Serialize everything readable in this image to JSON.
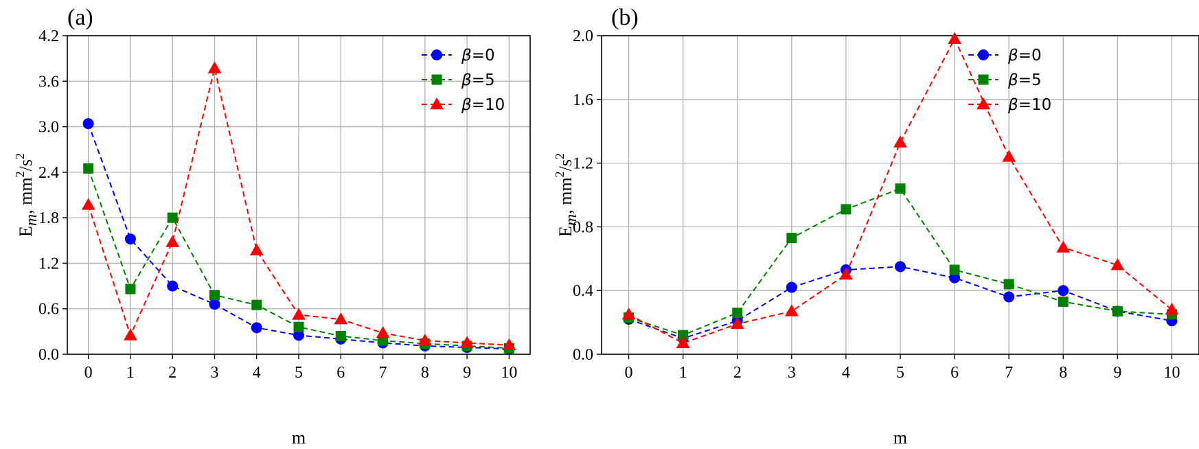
{
  "chart_data": [
    {
      "type": "line",
      "panel_label": "(a)",
      "xlabel": "m",
      "ylabel": "E",
      "ylabel_sub": "m",
      "ylabel_unit": ", mm",
      "ylabel_sup1": "2",
      "ylabel_slash": "/s",
      "ylabel_sup2": "2",
      "x": [
        0,
        1,
        2,
        3,
        4,
        5,
        6,
        7,
        8,
        9,
        10
      ],
      "x_tick_labels": [
        "0",
        "1",
        "2",
        "3",
        "4",
        "5",
        "6",
        "7",
        "8",
        "9",
        "10"
      ],
      "ylim": [
        0,
        4.2
      ],
      "y_ticks": [
        0.0,
        0.6,
        1.2,
        1.8,
        2.4,
        3.0,
        3.6,
        4.2
      ],
      "y_tick_labels": [
        "0.0",
        "0.6",
        "1.2",
        "1.8",
        "2.4",
        "3.0",
        "3.6",
        "4.2"
      ],
      "grid": true,
      "legend_position": "top-right",
      "series": [
        {
          "name": "β=0",
          "greek": "β",
          "suffix": "=0",
          "color": "#0000ff",
          "marker": "circle",
          "values": [
            3.04,
            1.52,
            0.9,
            0.66,
            0.35,
            0.25,
            0.2,
            0.15,
            0.11,
            0.09,
            0.07
          ]
        },
        {
          "name": "β=5",
          "greek": "β",
          "suffix": "=5",
          "color": "#008000",
          "marker": "square",
          "values": [
            2.45,
            0.86,
            1.8,
            0.78,
            0.65,
            0.36,
            0.24,
            0.18,
            0.14,
            0.11,
            0.08
          ]
        },
        {
          "name": "β=10",
          "greek": "β",
          "suffix": "=10",
          "color": "#ff0000",
          "marker": "triangle",
          "values": [
            1.97,
            0.25,
            1.48,
            3.77,
            1.37,
            0.52,
            0.46,
            0.28,
            0.18,
            0.15,
            0.12
          ]
        }
      ]
    },
    {
      "type": "line",
      "panel_label": "(b)",
      "xlabel": "m",
      "ylabel": "E",
      "ylabel_sub": "m",
      "ylabel_unit": ", mm",
      "ylabel_sup1": "2",
      "ylabel_slash": "/s",
      "ylabel_sup2": "2",
      "x": [
        0,
        1,
        2,
        3,
        4,
        5,
        6,
        7,
        8,
        9,
        10
      ],
      "x_tick_labels": [
        "0",
        "1",
        "2",
        "3",
        "4",
        "5",
        "6",
        "7",
        "8",
        "9",
        "10"
      ],
      "ylim": [
        0,
        2.0
      ],
      "y_ticks": [
        0.0,
        0.4,
        0.8,
        1.2,
        1.6,
        2.0
      ],
      "y_tick_labels": [
        "0.0",
        "0.4",
        "0.8",
        "1.2",
        "1.6",
        "2.0"
      ],
      "grid": true,
      "legend_position": "top-right",
      "series": [
        {
          "name": "β=0",
          "greek": "β",
          "suffix": "=0",
          "color": "#0000ff",
          "marker": "circle",
          "values": [
            0.22,
            0.1,
            0.21,
            0.42,
            0.53,
            0.55,
            0.48,
            0.36,
            0.4,
            0.27,
            0.21
          ]
        },
        {
          "name": "β=5",
          "greek": "β",
          "suffix": "=5",
          "color": "#008000",
          "marker": "square",
          "values": [
            0.23,
            0.12,
            0.26,
            0.73,
            0.91,
            1.04,
            0.53,
            0.44,
            0.33,
            0.27,
            0.25
          ]
        },
        {
          "name": "β=10",
          "greek": "β",
          "suffix": "=10",
          "color": "#ff0000",
          "marker": "triangle",
          "values": [
            0.25,
            0.07,
            0.19,
            0.27,
            0.5,
            1.33,
            1.98,
            1.24,
            0.67,
            0.56,
            0.28
          ]
        }
      ]
    }
  ]
}
